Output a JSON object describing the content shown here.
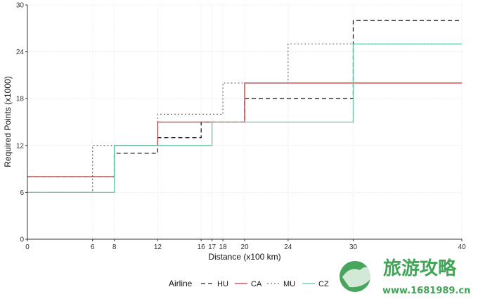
{
  "chart_data": {
    "type": "line",
    "step": true,
    "xlabel": "Distance (x100 km)",
    "ylabel": "Required Points (x1000)",
    "xlim": [
      0,
      40
    ],
    "ylim": [
      0,
      30
    ],
    "x_ticks": [
      0,
      6,
      8,
      12,
      16,
      17,
      18,
      20,
      24,
      30,
      40
    ],
    "y_ticks": [
      0,
      6,
      12,
      18,
      24,
      30
    ],
    "grid": true,
    "legend": {
      "title": "Airline",
      "position": "bottom",
      "entries": [
        "HU",
        "CA",
        "MU",
        "CZ"
      ]
    },
    "series": [
      {
        "name": "HU",
        "color": "#222222",
        "dash": "6,4",
        "x": [
          0,
          6,
          8,
          12,
          16,
          17,
          20,
          24,
          30,
          40
        ],
        "y": [
          8,
          8,
          11,
          13,
          15,
          15,
          18,
          18,
          28,
          28
        ]
      },
      {
        "name": "CA",
        "color": "#d62f2f",
        "dash": "",
        "x": [
          0,
          6,
          8,
          12,
          16,
          17,
          20,
          24,
          30,
          40
        ],
        "y": [
          8,
          8,
          12,
          15,
          15,
          15,
          20,
          20,
          20,
          20
        ]
      },
      {
        "name": "MU",
        "color": "#777777",
        "dash": "2,3",
        "x": [
          0,
          6,
          8,
          12,
          16,
          18,
          20,
          24,
          30,
          40
        ],
        "y": [
          6,
          12,
          12,
          16,
          16,
          20,
          20,
          25,
          25,
          25
        ]
      },
      {
        "name": "CZ",
        "color": "#66c2a5",
        "dash": "",
        "x": [
          0,
          6,
          8,
          12,
          16,
          17,
          20,
          24,
          30,
          40
        ],
        "y": [
          6,
          6,
          12,
          12,
          12,
          15,
          15,
          15,
          25,
          25
        ]
      }
    ]
  },
  "watermark": {
    "brand": "旅游攻略",
    "url": "www.1681989.cn"
  }
}
